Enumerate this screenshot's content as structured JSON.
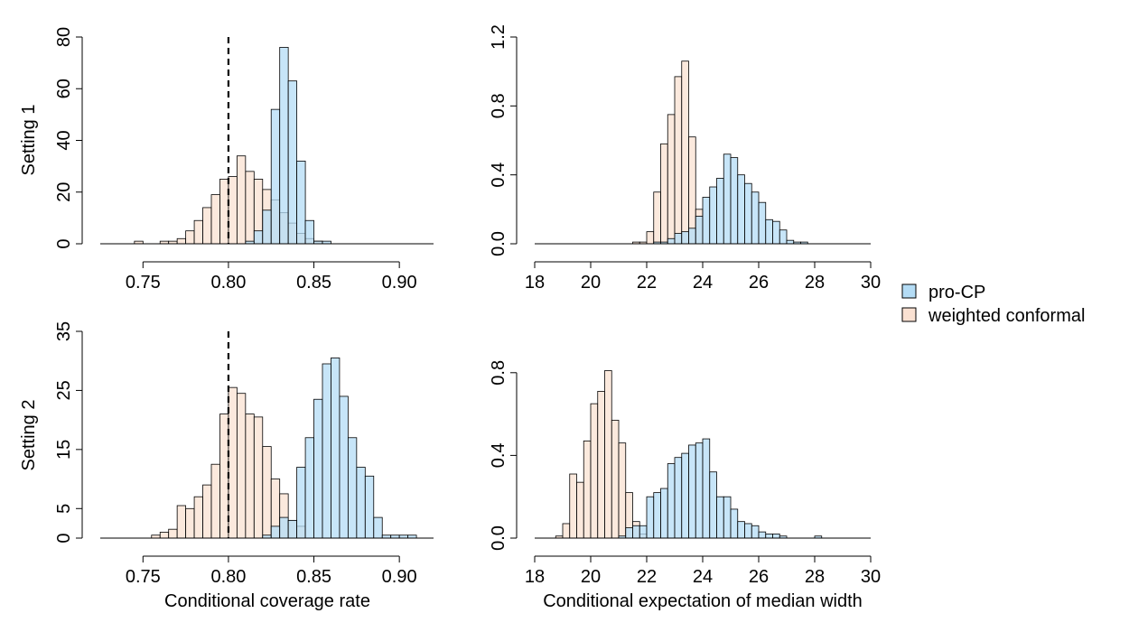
{
  "figure": {
    "row_labels": [
      "Setting 1",
      "Setting 2"
    ],
    "xlabels": [
      "Conditional coverage rate",
      "Conditional expectation of median width"
    ]
  },
  "legend": {
    "position": "right",
    "entries": [
      {
        "label": "pro-CP",
        "color": "#b4dcf5"
      },
      {
        "label": "weighted conformal",
        "color": "#fae1d2"
      }
    ]
  },
  "chart_data": [
    {
      "type": "bar",
      "panel": "setting1-coverage",
      "bin_width": 0.005,
      "xlim": [
        0.725,
        0.92
      ],
      "xticks": [
        0.75,
        0.8,
        0.85,
        0.9
      ],
      "xtick_labels": [
        "0.75",
        "0.80",
        "0.85",
        "0.90"
      ],
      "ylim": [
        0,
        80
      ],
      "yticks": [
        0,
        20,
        40,
        60,
        80
      ],
      "ytick_labels": [
        "0",
        "20",
        "40",
        "60",
        "80"
      ],
      "reference_line": 0.8,
      "series": [
        {
          "name": "weighted conformal",
          "color": "#fae1d2",
          "alpha": 0.75,
          "bin_starts": [
            0.745,
            0.75,
            0.755,
            0.76,
            0.765,
            0.77,
            0.775,
            0.78,
            0.785,
            0.79,
            0.795,
            0.8,
            0.805,
            0.81,
            0.815,
            0.82,
            0.825,
            0.83,
            0.835,
            0.84,
            0.845,
            0.85
          ],
          "values": [
            1,
            0,
            0,
            1,
            1,
            2,
            5,
            9,
            14,
            19,
            25,
            26,
            34,
            28,
            25,
            21,
            17,
            12,
            8,
            4,
            2,
            1
          ]
        },
        {
          "name": "pro-CP",
          "color": "#b4dcf5",
          "alpha": 0.75,
          "bin_starts": [
            0.81,
            0.815,
            0.82,
            0.825,
            0.83,
            0.835,
            0.84,
            0.845,
            0.85,
            0.855
          ],
          "values": [
            1,
            5,
            13,
            52,
            76,
            63,
            32,
            9,
            1,
            1
          ]
        }
      ]
    },
    {
      "type": "bar",
      "panel": "setting1-width",
      "bin_width": 0.25,
      "xlim": [
        18,
        30
      ],
      "xticks": [
        18,
        20,
        22,
        24,
        26,
        28,
        30
      ],
      "xtick_labels": [
        "18",
        "20",
        "22",
        "24",
        "26",
        "28",
        "30"
      ],
      "ylim": [
        0,
        1.2
      ],
      "yticks": [
        0,
        0.4,
        0.8,
        1.2
      ],
      "ytick_labels": [
        "0.0",
        "0.4",
        "0.8",
        "1.2"
      ],
      "series": [
        {
          "name": "weighted conformal",
          "color": "#fae1d2",
          "alpha": 0.75,
          "bin_starts": [
            21.5,
            21.75,
            22.0,
            22.25,
            22.5,
            22.75,
            23.0,
            23.25,
            23.5,
            23.75
          ],
          "values": [
            0.01,
            0.01,
            0.07,
            0.3,
            0.58,
            0.75,
            0.97,
            1.06,
            0.62,
            0.2
          ]
        },
        {
          "name": "pro-CP",
          "color": "#b4dcf5",
          "alpha": 0.75,
          "bin_starts": [
            22.25,
            22.5,
            22.75,
            23.0,
            23.25,
            23.5,
            23.75,
            24.0,
            24.25,
            24.5,
            24.75,
            25.0,
            25.25,
            25.5,
            25.75,
            26.0,
            26.25,
            26.5,
            26.75,
            27.0,
            27.25,
            27.5
          ],
          "values": [
            0.01,
            0.01,
            0.03,
            0.06,
            0.07,
            0.09,
            0.16,
            0.27,
            0.33,
            0.38,
            0.52,
            0.5,
            0.4,
            0.35,
            0.3,
            0.24,
            0.14,
            0.13,
            0.08,
            0.02,
            0.01,
            0.01
          ]
        }
      ]
    },
    {
      "type": "bar",
      "panel": "setting2-coverage",
      "bin_width": 0.005,
      "xlim": [
        0.725,
        0.92
      ],
      "xticks": [
        0.75,
        0.8,
        0.85,
        0.9
      ],
      "xtick_labels": [
        "0.75",
        "0.80",
        "0.85",
        "0.90"
      ],
      "ylim": [
        0,
        35
      ],
      "yticks": [
        0,
        5,
        15,
        25,
        35
      ],
      "ytick_labels": [
        "0",
        "5",
        "15",
        "25",
        "35"
      ],
      "reference_line": 0.8,
      "series": [
        {
          "name": "weighted conformal",
          "color": "#fae1d2",
          "alpha": 0.75,
          "bin_starts": [
            0.755,
            0.76,
            0.765,
            0.77,
            0.775,
            0.78,
            0.785,
            0.79,
            0.795,
            0.8,
            0.805,
            0.81,
            0.815,
            0.82,
            0.825,
            0.83,
            0.835,
            0.84
          ],
          "values": [
            0.5,
            1,
            1.5,
            5.5,
            5,
            7,
            9,
            12.5,
            21,
            25.5,
            24.5,
            21,
            20.5,
            15.5,
            10,
            7.5,
            3,
            2
          ]
        },
        {
          "name": "pro-CP",
          "color": "#b4dcf5",
          "alpha": 0.75,
          "bin_starts": [
            0.82,
            0.825,
            0.83,
            0.835,
            0.84,
            0.845,
            0.85,
            0.855,
            0.86,
            0.865,
            0.87,
            0.875,
            0.88,
            0.885,
            0.89,
            0.895,
            0.9,
            0.905
          ],
          "values": [
            0.5,
            2,
            3.5,
            3,
            12,
            17,
            23.5,
            29.5,
            30.5,
            24,
            17,
            12,
            10.5,
            3.5,
            0.5,
            0.5,
            0.5,
            0.5
          ]
        }
      ]
    },
    {
      "type": "bar",
      "panel": "setting2-width",
      "bin_width": 0.25,
      "xlim": [
        18,
        30
      ],
      "xticks": [
        18,
        20,
        22,
        24,
        26,
        28,
        30
      ],
      "xtick_labels": [
        "18",
        "20",
        "22",
        "24",
        "26",
        "28",
        "30"
      ],
      "ylim": [
        0,
        1.0
      ],
      "yticks": [
        0,
        0.4,
        0.8
      ],
      "ytick_labels": [
        "0.0",
        "0.4",
        "0.8"
      ],
      "series": [
        {
          "name": "weighted conformal",
          "color": "#fae1d2",
          "alpha": 0.75,
          "bin_starts": [
            18.75,
            19.0,
            19.25,
            19.5,
            19.75,
            20.0,
            20.25,
            20.5,
            20.75,
            21.0,
            21.25,
            21.5,
            21.75
          ],
          "values": [
            0.01,
            0.07,
            0.31,
            0.27,
            0.47,
            0.65,
            0.71,
            0.81,
            0.57,
            0.46,
            0.22,
            0.08,
            0.02
          ]
        },
        {
          "name": "pro-CP",
          "color": "#b4dcf5",
          "alpha": 0.75,
          "bin_starts": [
            21.0,
            21.25,
            21.5,
            21.75,
            22.0,
            22.25,
            22.5,
            22.75,
            23.0,
            23.25,
            23.5,
            23.75,
            24.0,
            24.25,
            24.5,
            24.75,
            25.0,
            25.25,
            25.5,
            25.75,
            26.0,
            26.25,
            26.5,
            26.75,
            28.0
          ],
          "values": [
            0.01,
            0.05,
            0.06,
            0.06,
            0.2,
            0.22,
            0.24,
            0.36,
            0.39,
            0.41,
            0.45,
            0.46,
            0.48,
            0.32,
            0.2,
            0.2,
            0.14,
            0.08,
            0.07,
            0.06,
            0.03,
            0.02,
            0.02,
            0.01,
            0.01
          ]
        }
      ]
    }
  ]
}
